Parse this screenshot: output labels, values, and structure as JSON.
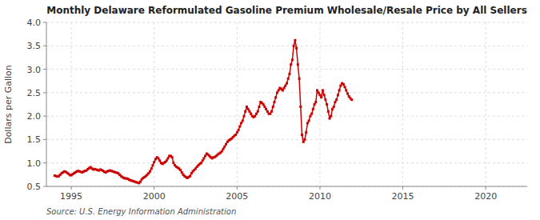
{
  "chart_data": {
    "type": "line",
    "title": "Monthly Delaware Reformulated Gasoline Premium Wholesale/Resale Price by All Sellers",
    "y_label": "Dollars per Gallon",
    "source": "Source: U.S. Energy Information Administration",
    "color": "#cc0000",
    "marker": "square",
    "grid": true,
    "xlim": [
      1993.5,
      2022.5
    ],
    "ylim": [
      0.5,
      4.0
    ],
    "xticks": [
      1995,
      2000,
      2005,
      2010,
      2015,
      2020
    ],
    "yticks": [
      0.5,
      {
        "value": 1.0,
        "label": "1.0"
      },
      1.5,
      {
        "value": 2.0,
        "label": "2.0"
      },
      2.5,
      {
        "value": 3.0,
        "label": "3.0"
      },
      3.5,
      {
        "value": 4.0,
        "label": "4.0"
      }
    ],
    "x": [
      1994.0,
      1994.083,
      1994.167,
      1994.25,
      1994.333,
      1994.417,
      1994.5,
      1994.583,
      1994.667,
      1994.75,
      1994.833,
      1994.917,
      1995.0,
      1995.083,
      1995.167,
      1995.25,
      1995.333,
      1995.417,
      1995.5,
      1995.583,
      1995.667,
      1995.75,
      1995.833,
      1995.917,
      1996.0,
      1996.083,
      1996.167,
      1996.25,
      1996.333,
      1996.417,
      1996.5,
      1996.583,
      1996.667,
      1996.75,
      1996.833,
      1996.917,
      1997.0,
      1997.083,
      1997.167,
      1997.25,
      1997.333,
      1997.417,
      1997.5,
      1997.583,
      1997.667,
      1997.75,
      1997.833,
      1997.917,
      1998.0,
      1998.083,
      1998.167,
      1998.25,
      1998.333,
      1998.417,
      1998.5,
      1998.583,
      1998.667,
      1998.75,
      1998.833,
      1998.917,
      1999.0,
      1999.083,
      1999.167,
      1999.25,
      1999.333,
      1999.417,
      1999.5,
      1999.583,
      1999.667,
      1999.75,
      1999.833,
      1999.917,
      2000.0,
      2000.083,
      2000.167,
      2000.25,
      2000.333,
      2000.417,
      2000.5,
      2000.583,
      2000.667,
      2000.75,
      2000.833,
      2000.917,
      2001.0,
      2001.083,
      2001.167,
      2001.25,
      2001.333,
      2001.417,
      2001.5,
      2001.583,
      2001.667,
      2001.75,
      2001.833,
      2001.917,
      2002.0,
      2002.083,
      2002.167,
      2002.25,
      2002.333,
      2002.417,
      2002.5,
      2002.583,
      2002.667,
      2002.75,
      2002.833,
      2002.917,
      2003.0,
      2003.083,
      2003.167,
      2003.25,
      2003.333,
      2003.417,
      2003.5,
      2003.583,
      2003.667,
      2003.75,
      2003.833,
      2003.917,
      2004.0,
      2004.083,
      2004.167,
      2004.25,
      2004.333,
      2004.417,
      2004.5,
      2004.583,
      2004.667,
      2004.75,
      2004.833,
      2004.917,
      2005.0,
      2005.083,
      2005.167,
      2005.25,
      2005.333,
      2005.417,
      2005.5,
      2005.583,
      2005.667,
      2005.75,
      2005.833,
      2005.917,
      2006.0,
      2006.083,
      2006.167,
      2006.25,
      2006.333,
      2006.417,
      2006.5,
      2006.583,
      2006.667,
      2006.75,
      2006.833,
      2006.917,
      2007.0,
      2007.083,
      2007.167,
      2007.25,
      2007.333,
      2007.417,
      2007.5,
      2007.583,
      2007.667,
      2007.75,
      2007.833,
      2007.917,
      2008.0,
      2008.083,
      2008.167,
      2008.25,
      2008.333,
      2008.417,
      2008.5,
      2008.583,
      2008.667,
      2008.75,
      2008.833,
      2008.917,
      2009.0,
      2009.083,
      2009.167,
      2009.25,
      2009.333,
      2009.417,
      2009.5,
      2009.583,
      2009.667,
      2009.75,
      2009.833,
      2009.917,
      2010.0,
      2010.083,
      2010.167,
      2010.25,
      2010.333,
      2010.417,
      2010.5,
      2010.583,
      2010.667,
      2010.75,
      2010.833,
      2010.917,
      2011.0,
      2011.083,
      2011.167,
      2011.25,
      2011.333,
      2011.417,
      2011.5,
      2011.583,
      2011.667,
      2011.75,
      2011.833,
      2011.917
    ],
    "values": [
      0.73,
      0.72,
      0.71,
      0.72,
      0.75,
      0.78,
      0.8,
      0.82,
      0.81,
      0.79,
      0.77,
      0.74,
      0.74,
      0.76,
      0.78,
      0.8,
      0.82,
      0.83,
      0.82,
      0.81,
      0.8,
      0.82,
      0.83,
      0.84,
      0.87,
      0.89,
      0.91,
      0.88,
      0.86,
      0.87,
      0.86,
      0.85,
      0.84,
      0.86,
      0.85,
      0.83,
      0.81,
      0.8,
      0.82,
      0.83,
      0.84,
      0.83,
      0.82,
      0.81,
      0.8,
      0.79,
      0.78,
      0.75,
      0.72,
      0.7,
      0.68,
      0.67,
      0.67,
      0.66,
      0.64,
      0.63,
      0.62,
      0.61,
      0.6,
      0.59,
      0.58,
      0.57,
      0.6,
      0.65,
      0.68,
      0.7,
      0.72,
      0.75,
      0.78,
      0.82,
      0.88,
      0.95,
      1.02,
      1.08,
      1.12,
      1.1,
      1.05,
      1.0,
      0.98,
      1.0,
      1.02,
      1.05,
      1.1,
      1.15,
      1.15,
      1.12,
      1.0,
      0.95,
      0.92,
      0.9,
      0.88,
      0.85,
      0.8,
      0.75,
      0.72,
      0.7,
      0.68,
      0.7,
      0.72,
      0.78,
      0.82,
      0.85,
      0.88,
      0.92,
      0.95,
      0.98,
      1.0,
      1.05,
      1.1,
      1.15,
      1.2,
      1.18,
      1.15,
      1.12,
      1.1,
      1.12,
      1.13,
      1.15,
      1.18,
      1.2,
      1.22,
      1.25,
      1.3,
      1.35,
      1.4,
      1.45,
      1.48,
      1.5,
      1.52,
      1.55,
      1.58,
      1.6,
      1.65,
      1.7,
      1.78,
      1.85,
      1.9,
      2.0,
      2.1,
      2.2,
      2.15,
      2.1,
      2.05,
      2.0,
      1.98,
      2.0,
      2.05,
      2.1,
      2.2,
      2.3,
      2.28,
      2.25,
      2.2,
      2.15,
      2.1,
      2.05,
      2.05,
      2.1,
      2.2,
      2.3,
      2.4,
      2.5,
      2.55,
      2.6,
      2.58,
      2.55,
      2.6,
      2.65,
      2.7,
      2.8,
      2.9,
      3.1,
      3.2,
      3.5,
      3.62,
      3.45,
      3.1,
      2.8,
      2.2,
      1.6,
      1.45,
      1.5,
      1.65,
      1.85,
      1.9,
      2.0,
      2.05,
      2.15,
      2.25,
      2.3,
      2.55,
      2.5,
      2.45,
      2.4,
      2.55,
      2.45,
      2.35,
      2.25,
      2.1,
      1.95,
      2.0,
      2.15,
      2.2,
      2.3,
      2.35,
      2.45,
      2.55,
      2.65,
      2.7,
      2.68,
      2.62,
      2.55,
      2.48,
      2.42,
      2.38,
      2.35
    ]
  }
}
